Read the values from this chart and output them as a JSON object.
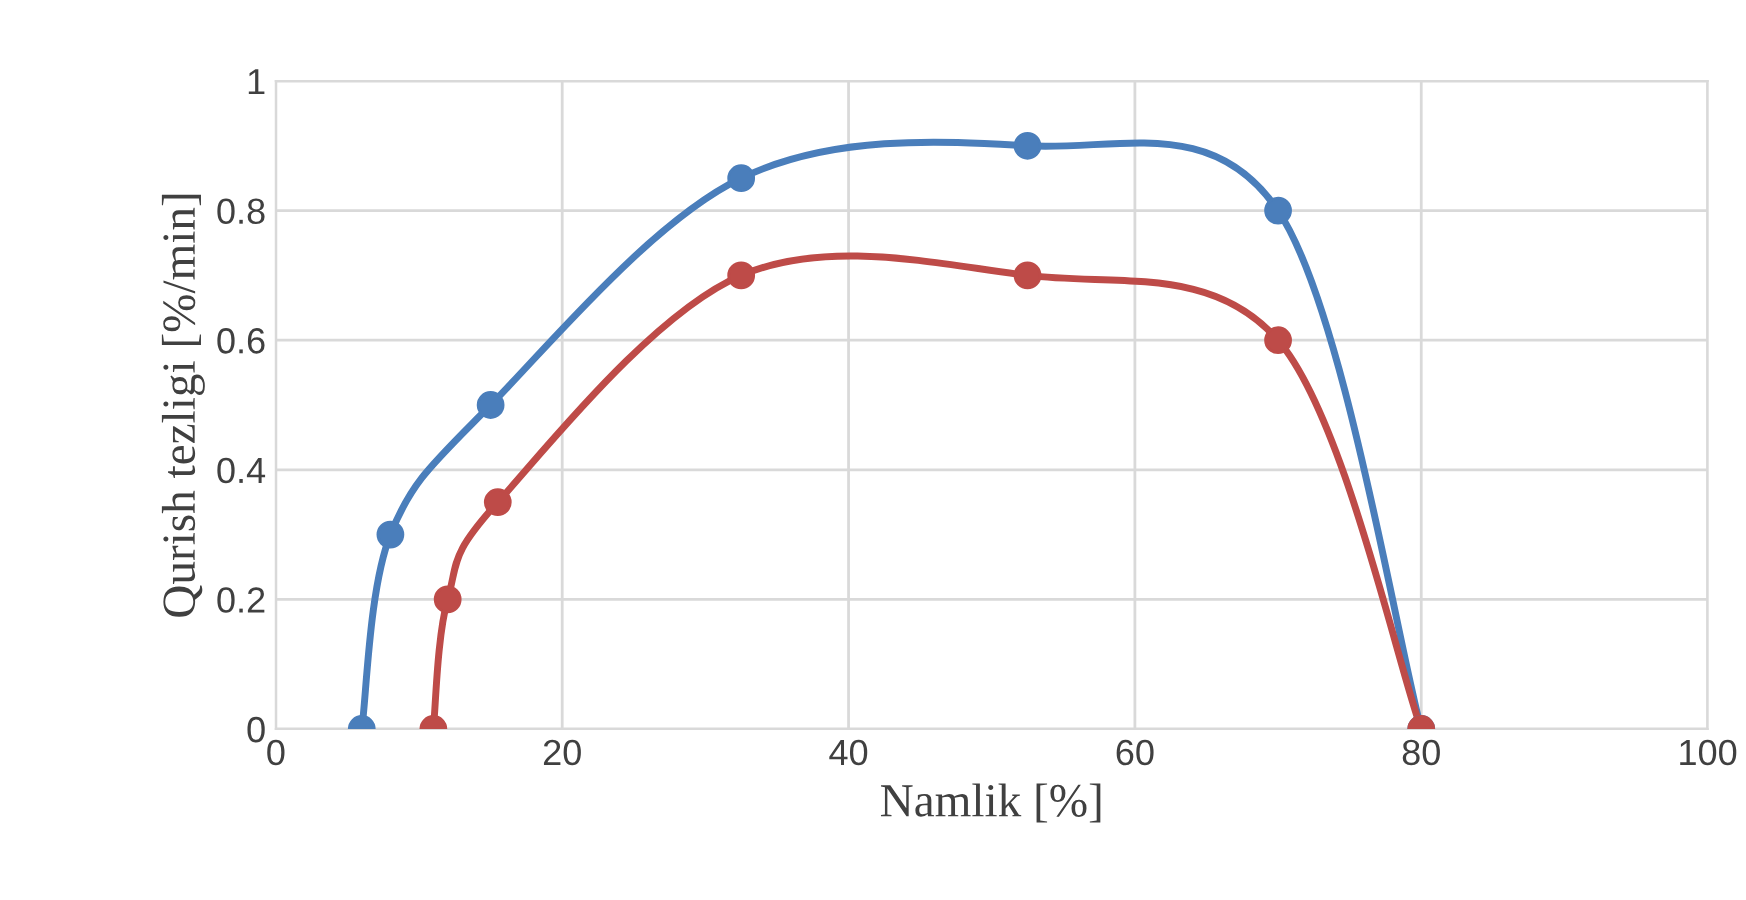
{
  "chart_data": {
    "type": "line",
    "xlabel": "Namlik [%]",
    "ylabel": "Qurish tezligi [%/min]",
    "xlim": [
      0,
      100
    ],
    "xticks": [
      0,
      20,
      40,
      60,
      80,
      100
    ],
    "ylim": [
      0,
      1
    ],
    "yticks": [
      0,
      0.2,
      0.4,
      0.6,
      0.8,
      1
    ],
    "grid": true,
    "marker": "circle",
    "line_style": "solid",
    "series": [
      {
        "color": "#4a7ebb",
        "x": [
          6,
          8,
          15,
          32.5,
          52.5,
          70,
          80
        ],
        "values": [
          0,
          0.3,
          0.5,
          0.85,
          0.9,
          0.8,
          0
        ]
      },
      {
        "color": "#be4b48",
        "x": [
          11,
          12,
          15.5,
          32.5,
          52.5,
          70,
          80
        ],
        "values": [
          0,
          0.2,
          0.35,
          0.7,
          0.7,
          0.6,
          0
        ]
      }
    ]
  }
}
